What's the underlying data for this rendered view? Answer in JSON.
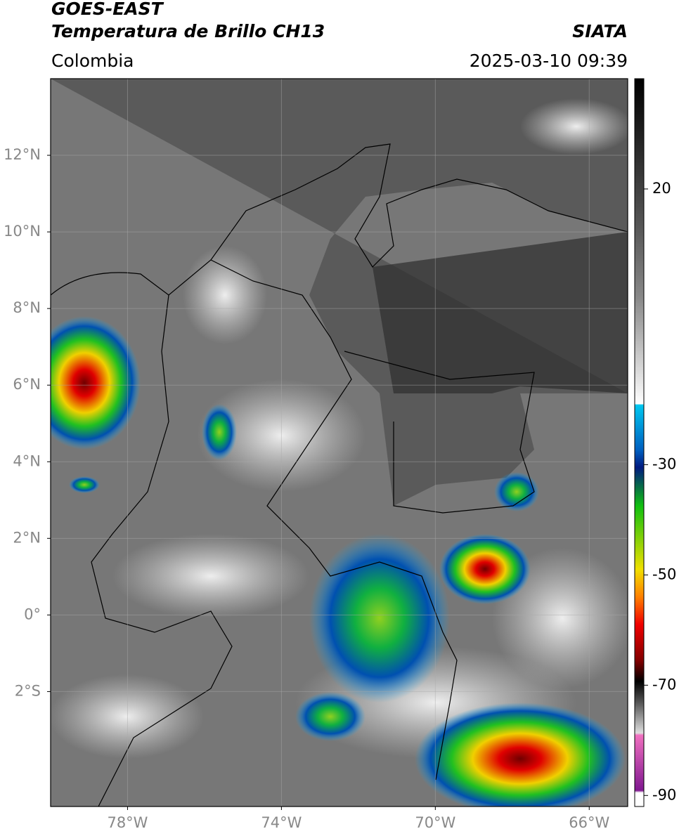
{
  "header": {
    "title": "GOES-EAST",
    "subtitle": "Temperatura de Brillo CH13",
    "source": "SIATA",
    "region": "Colombia",
    "timestamp": "2025-03-10 09:39"
  },
  "map": {
    "xlim": [
      -80,
      -65
    ],
    "ylim": [
      -5,
      14
    ],
    "xticks": [
      {
        "value": -78,
        "label": "78°W"
      },
      {
        "value": -74,
        "label": "74°W"
      },
      {
        "value": -70,
        "label": "70°W"
      },
      {
        "value": -66,
        "label": "66°W"
      }
    ],
    "yticks": [
      {
        "value": 12,
        "label": "12°N"
      },
      {
        "value": 10,
        "label": "10°N"
      },
      {
        "value": 8,
        "label": "8°N"
      },
      {
        "value": 6,
        "label": "6°N"
      },
      {
        "value": 4,
        "label": "4°N"
      },
      {
        "value": 2,
        "label": "2°N"
      },
      {
        "value": 0,
        "label": "0°"
      },
      {
        "value": -2,
        "label": "2°S"
      }
    ],
    "grid": true
  },
  "colorbar": {
    "lim": [
      -92,
      40
    ],
    "ticks": [
      20,
      -30,
      -50,
      -70,
      -90
    ]
  }
}
